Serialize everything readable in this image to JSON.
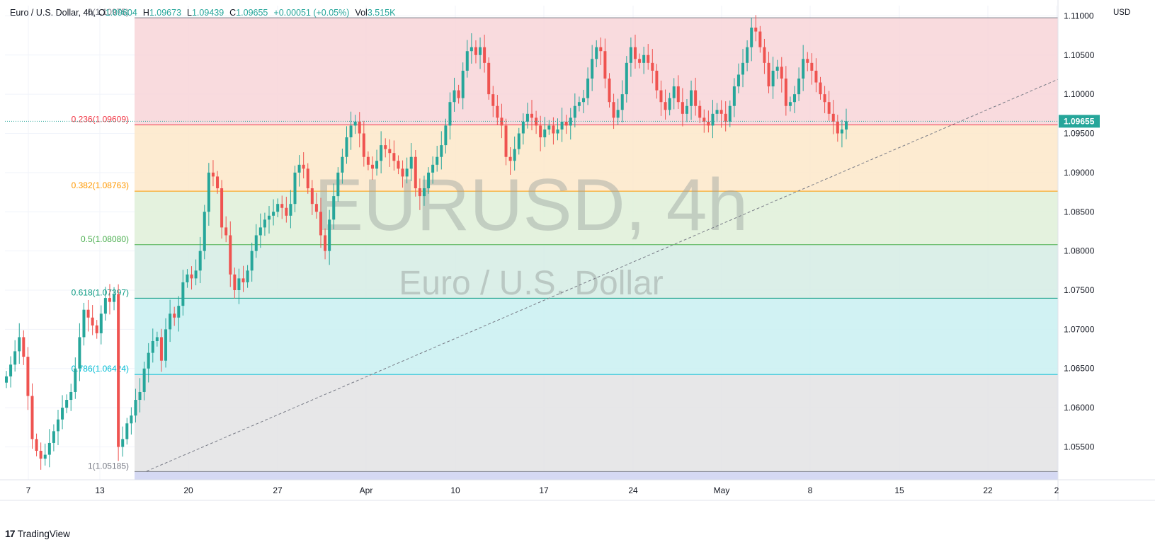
{
  "legend": {
    "symbol": "Euro / U.S. Dollar, 4h,",
    "open_label": "O",
    "open": "1.09604",
    "high_label": "H",
    "high": "1.09673",
    "low_label": "L",
    "low": "1.09439",
    "close_label": "C",
    "close": "1.09655",
    "change": "+0.00051 (+0.05%)",
    "vol_label": "Vol",
    "volume": "3.515K"
  },
  "currency": "USD",
  "last_price_tag": "1.09655",
  "watermark": {
    "ticker": "EURUSD, 4h",
    "name": "Euro / U.S. Dollar"
  },
  "brand": {
    "mark": "17",
    "name": "TradingView"
  },
  "colors": {
    "up": "#26a69a",
    "down": "#ef5350",
    "accent": "#131722",
    "fib_0": "#f8d5d8",
    "fib_0236": "#fde7c9",
    "fib_0382": "#dff0d8",
    "fib_05": "#d5ece4",
    "fib_0618": "#c9f0f1",
    "fib_0786": "#e3e3e4",
    "fib_1": "#d5d9f3"
  },
  "chart_data": {
    "type": "candlestick",
    "ylim": [
      1.0508,
      1.1113
    ],
    "y_ticks": [
      "1.11000",
      "1.10500",
      "1.10000",
      "1.09500",
      "1.09000",
      "1.08500",
      "1.08000",
      "1.07500",
      "1.07000",
      "1.06500",
      "1.06000",
      "1.05500"
    ],
    "x_ticks": [
      "7",
      "13",
      "20",
      "27",
      "Apr",
      "10",
      "17",
      "24",
      "May",
      "8",
      "15",
      "22",
      "2"
    ],
    "fibonacci": [
      {
        "label": "0(1.10975)",
        "level": 1.10975,
        "color": "#787b86"
      },
      {
        "label": "0.236(1.09609)",
        "level": 1.09609,
        "color": "#f23645"
      },
      {
        "label": "0.382(1.08763)",
        "level": 1.08763,
        "color": "#ff9800"
      },
      {
        "label": "0.5(1.08080)",
        "level": 1.0808,
        "color": "#4caf50"
      },
      {
        "label": "0.618(1.07397)",
        "level": 1.07397,
        "color": "#089981"
      },
      {
        "label": "0.786(1.06424)",
        "level": 1.06424,
        "color": "#00bcd4"
      },
      {
        "label": "1(1.05185)",
        "level": 1.05185,
        "color": "#787b86"
      }
    ],
    "trendline": {
      "from": [
        "Mar 16",
        1.0519
      ],
      "to": [
        "May 28",
        1.1019
      ]
    },
    "closes": [
      1.064,
      1.0655,
      1.0672,
      1.069,
      1.0665,
      1.0615,
      1.056,
      1.0545,
      1.0535,
      1.054,
      1.0555,
      1.057,
      1.0585,
      1.06,
      1.061,
      1.062,
      1.065,
      1.069,
      1.0725,
      1.0715,
      1.0705,
      1.0695,
      1.072,
      1.074,
      1.0735,
      1.0745,
      1.055,
      1.056,
      1.058,
      1.059,
      1.061,
      1.062,
      1.065,
      1.067,
      1.0685,
      1.069,
      1.066,
      1.07,
      1.072,
      1.0715,
      1.073,
      1.076,
      1.077,
      1.0765,
      1.0775,
      1.08,
      1.085,
      1.09,
      1.0895,
      1.088,
      1.083,
      1.082,
      1.077,
      1.075,
      1.0765,
      1.076,
      1.0775,
      1.08,
      1.082,
      1.083,
      1.084,
      1.0845,
      1.085,
      1.086,
      1.0855,
      1.0845,
      1.086,
      1.09,
      1.091,
      1.0905,
      1.088,
      1.086,
      1.085,
      1.082,
      1.08,
      1.084,
      1.087,
      1.09,
      1.092,
      1.0945,
      1.096,
      1.0965,
      1.095,
      1.092,
      1.091,
      1.0905,
      1.0915,
      1.0935,
      1.093,
      1.0925,
      1.0915,
      1.0905,
      1.0895,
      1.0905,
      1.092,
      1.088,
      1.087,
      1.088,
      1.09,
      1.091,
      1.092,
      1.0935,
      1.096,
      1.099,
      1.1005,
      1.0995,
      1.103,
      1.1055,
      1.106,
      1.105,
      1.106,
      1.104,
      1.1,
      1.0985,
      1.097,
      1.096,
      1.092,
      1.0915,
      1.093,
      1.095,
      1.0965,
      1.0975,
      1.097,
      1.096,
      1.0945,
      1.0955,
      1.096,
      1.095,
      1.0955,
      1.0965,
      1.096,
      1.097,
      1.0985,
      1.099,
      1.0995,
      1.102,
      1.1045,
      1.106,
      1.1055,
      1.102,
      1.099,
      1.097,
      1.098,
      1.1,
      1.104,
      1.106,
      1.1045,
      1.104,
      1.105,
      1.104,
      1.103,
      1.1005,
      1.099,
      1.098,
      1.0995,
      1.101,
      1.099,
      1.0975,
      1.0985,
      1.1005,
      1.0985,
      1.097,
      1.0965,
      1.096,
      1.0975,
      1.098,
      1.0975,
      1.0965,
      1.0985,
      1.101,
      1.1025,
      1.104,
      1.106,
      1.1085,
      1.108,
      1.106,
      1.104,
      1.101,
      1.103,
      1.1035,
      1.102,
      1.0985,
      1.099,
      1.1,
      1.102,
      1.1045,
      1.104,
      1.103,
      1.1015,
      1.1,
      1.099,
      1.0975,
      1.0965,
      1.095,
      1.0955,
      1.09655
    ]
  }
}
